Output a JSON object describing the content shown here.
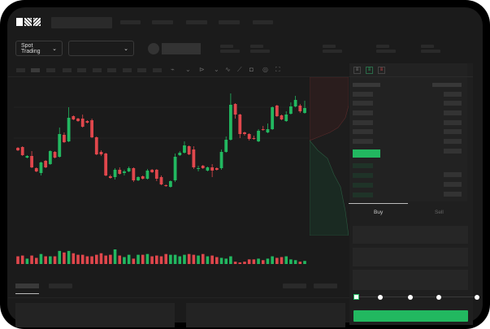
{
  "brand": {
    "logo_text": "OKX"
  },
  "header": {
    "market_select": "Spot Trading",
    "pair_select": ""
  },
  "order_panel": {
    "tabs": [
      "Buy",
      "Sell"
    ],
    "active_tab": "Buy",
    "slider_value_percent": 0
  },
  "colors": {
    "up": "#22b860",
    "down": "#e0474c",
    "background": "#1b1b1b",
    "accent": "#22b860"
  },
  "icons": [
    "chevron-down-icon",
    "line-chart-icon",
    "ruler-icon",
    "camera-icon",
    "settings-icon",
    "fullscreen-icon",
    "orderbook-both-icon",
    "orderbook-buy-icon",
    "orderbook-sell-icon"
  ],
  "chart_data": {
    "type": "candlestick",
    "title": "",
    "xlabel": "",
    "ylabel": "",
    "grid": true,
    "ylim": [
      0,
      160
    ],
    "ohlc": [
      [
        68,
        69,
        64,
        65
      ],
      [
        69,
        70,
        58,
        59
      ],
      [
        56,
        59,
        55,
        58
      ],
      [
        58,
        64,
        43,
        44
      ],
      [
        43,
        44,
        38,
        39
      ],
      [
        37,
        51,
        34,
        50
      ],
      [
        52,
        53,
        43,
        44
      ],
      [
        48,
        65,
        47,
        64
      ],
      [
        63,
        64,
        55,
        56
      ],
      [
        57,
        93,
        56,
        85
      ],
      [
        84,
        87,
        74,
        75
      ],
      [
        76,
        118,
        75,
        105
      ],
      [
        107,
        108,
        102,
        103
      ],
      [
        104,
        105,
        100,
        101
      ],
      [
        104,
        109,
        93,
        94
      ],
      [
        101,
        102,
        98,
        99
      ],
      [
        102,
        104,
        80,
        81
      ],
      [
        81,
        82,
        59,
        60
      ],
      [
        63,
        65,
        58,
        60
      ],
      [
        61,
        62,
        33,
        34
      ],
      [
        33,
        35,
        30,
        31
      ],
      [
        32,
        43,
        29,
        41
      ],
      [
        41,
        44,
        35,
        36
      ],
      [
        37,
        41,
        34,
        39
      ],
      [
        39,
        45,
        38,
        43
      ],
      [
        43,
        44,
        26,
        28
      ],
      [
        28,
        33,
        27,
        32
      ],
      [
        33,
        34,
        29,
        30
      ],
      [
        30,
        42,
        29,
        40
      ],
      [
        41,
        42,
        37,
        38
      ],
      [
        41,
        42,
        27,
        30
      ],
      [
        32,
        34,
        22,
        23
      ],
      [
        22,
        23,
        20,
        21
      ],
      [
        20,
        28,
        19,
        27
      ],
      [
        28,
        61,
        26,
        57
      ],
      [
        59,
        64,
        58,
        62
      ],
      [
        62,
        76,
        61,
        71
      ],
      [
        70,
        71,
        59,
        60
      ],
      [
        66,
        70,
        42,
        44
      ],
      [
        42,
        46,
        39,
        43
      ],
      [
        46,
        47,
        42,
        43
      ],
      [
        40,
        45,
        39,
        44
      ],
      [
        44,
        48,
        32,
        40
      ],
      [
        43,
        44,
        40,
        41
      ],
      [
        43,
        66,
        41,
        63
      ],
      [
        63,
        82,
        62,
        78
      ],
      [
        78,
        135,
        77,
        121
      ],
      [
        122,
        123,
        104,
        109
      ],
      [
        109,
        110,
        80,
        85
      ],
      [
        87,
        88,
        83,
        85
      ],
      [
        85,
        86,
        77,
        79
      ],
      [
        80,
        83,
        78,
        79
      ],
      [
        76,
        91,
        75,
        89
      ],
      [
        91,
        95,
        89,
        90
      ],
      [
        87,
        98,
        86,
        91
      ],
      [
        91,
        119,
        90,
        118
      ],
      [
        120,
        121,
        106,
        107
      ],
      [
        108,
        109,
        102,
        103
      ],
      [
        101,
        113,
        100,
        109
      ],
      [
        110,
        124,
        109,
        119
      ],
      [
        119,
        132,
        118,
        127
      ],
      [
        120,
        122,
        111,
        113
      ],
      [
        111,
        126,
        110,
        117
      ]
    ],
    "volume": [
      10,
      11,
      7,
      11,
      8,
      13,
      10,
      10,
      10,
      17,
      15,
      17,
      14,
      12,
      12,
      10,
      10,
      12,
      14,
      11,
      12,
      19,
      11,
      9,
      12,
      7,
      12,
      12,
      13,
      10,
      11,
      10,
      13,
      12,
      12,
      10,
      12,
      13,
      12,
      11,
      13,
      10,
      11,
      9,
      8,
      7,
      10,
      3,
      2,
      3,
      6,
      6,
      7,
      5,
      7,
      10,
      8,
      9,
      10,
      6,
      5,
      3,
      4
    ]
  }
}
